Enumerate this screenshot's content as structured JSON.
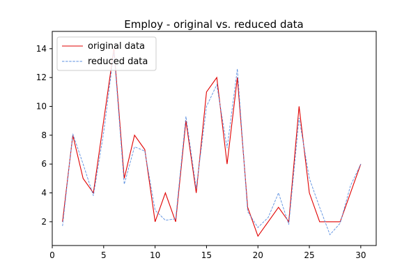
{
  "chart_data": {
    "type": "line",
    "title": "Employ - original vs. reduced data",
    "xlabel": "",
    "ylabel": "",
    "xlim": [
      0,
      31.5
    ],
    "ylim": [
      0.35,
      15.2
    ],
    "x_ticks": [
      0,
      5,
      10,
      15,
      20,
      25,
      30
    ],
    "y_ticks": [
      2,
      4,
      6,
      8,
      10,
      12,
      14
    ],
    "x": [
      1,
      2,
      3,
      4,
      5,
      6,
      7,
      8,
      9,
      10,
      11,
      12,
      13,
      14,
      15,
      16,
      17,
      18,
      19,
      20,
      21,
      22,
      23,
      24,
      25,
      26,
      27,
      28,
      29,
      30
    ],
    "series": [
      {
        "name": "original data",
        "color": "#e00000",
        "style": "solid",
        "values": [
          2,
          8,
          5,
          4,
          9,
          14,
          5,
          8,
          7,
          2,
          4,
          2,
          9,
          4,
          11,
          12,
          6,
          12,
          3,
          1,
          2,
          3,
          2,
          10,
          4,
          2,
          2,
          2,
          4,
          6
        ]
      },
      {
        "name": "reduced data",
        "color": "#5b8fe0",
        "style": "dashed",
        "values": [
          1.7,
          8.1,
          6.0,
          3.8,
          8.2,
          13.8,
          4.6,
          7.2,
          6.9,
          2.8,
          2.1,
          2.2,
          9.3,
          4.3,
          10.0,
          11.5,
          7.1,
          12.6,
          2.7,
          1.6,
          2.3,
          4.0,
          1.8,
          9.2,
          5.0,
          3.0,
          1.1,
          1.9,
          4.5,
          6.0
        ]
      }
    ],
    "legend_position": "upper-left",
    "grid": false
  }
}
